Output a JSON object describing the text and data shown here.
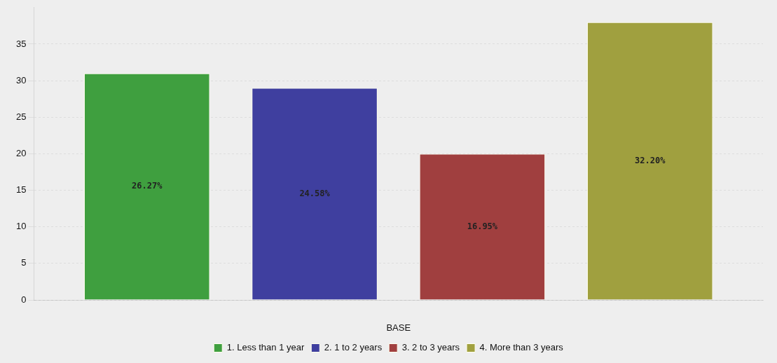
{
  "chart_data": {
    "type": "bar",
    "xlabel": "BASE",
    "categories": [
      null
    ],
    "series": [
      {
        "name": "1. Less than 1 year",
        "color": "#3f9f3f",
        "values": [
          31
        ]
      },
      {
        "name": "2. 1 to 2 years",
        "color": "#3f3f9f",
        "values": [
          29
        ]
      },
      {
        "name": "3. 2 to 3 years",
        "color": "#a03f3f",
        "values": [
          20
        ]
      },
      {
        "name": "4. More than 3 years",
        "color": "#a0a03f",
        "values": [
          38
        ]
      }
    ],
    "annotations": [
      "26.27%",
      "24.58%",
      "16.95%",
      "32.20%"
    ],
    "ylim": [
      0,
      40
    ],
    "yticks": [
      0,
      5,
      10,
      15,
      20,
      25,
      30,
      35
    ],
    "grid": "y",
    "legend": "bottom"
  }
}
